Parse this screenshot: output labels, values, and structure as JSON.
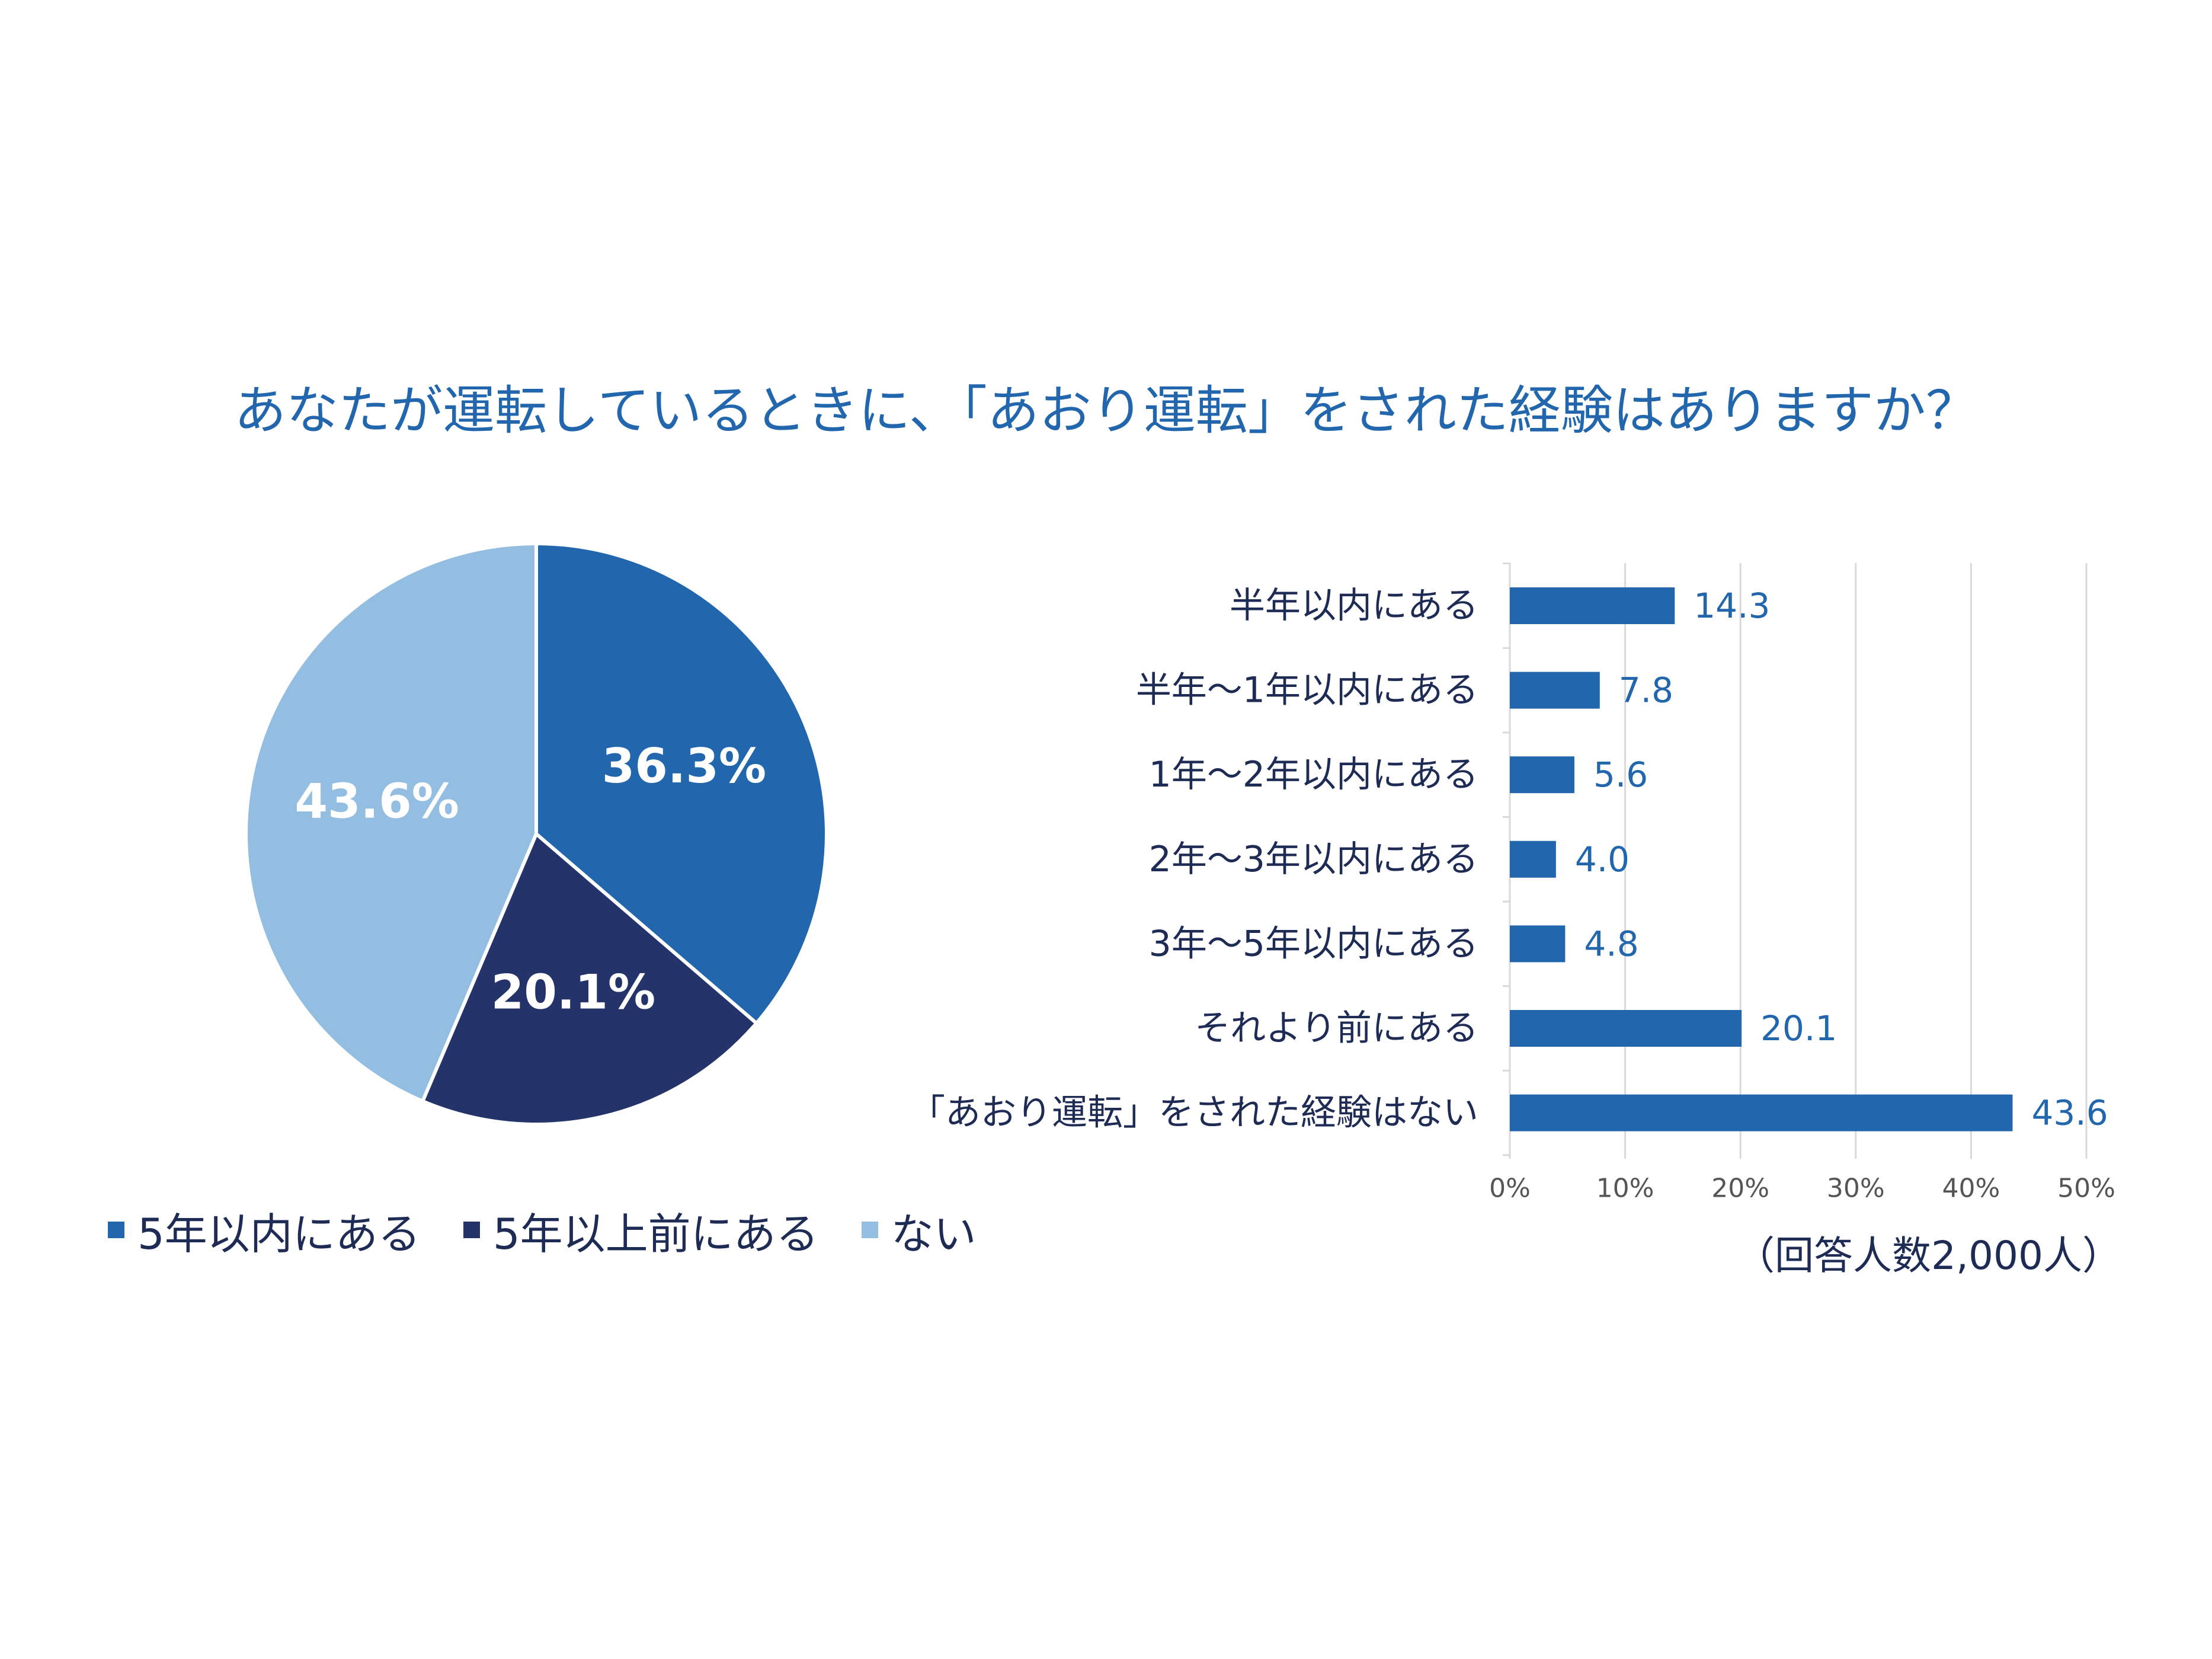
{
  "title": "あなたが運転しているときに、「あおり運転」をされた経験はありますか？",
  "colors": {
    "title": "#2267ad",
    "text": "#1e2b55",
    "axis_text": "#555555",
    "grid": "#d9d9d9",
    "bar": "#2267ad",
    "bar_label": "#2267ad"
  },
  "chart_data": [
    {
      "type": "pie",
      "labels": [
        "5年以内にある",
        "5年以上前にある",
        "ない"
      ],
      "values": [
        36.3,
        20.1,
        43.6
      ],
      "value_labels": [
        "36.3%",
        "20.1%",
        "43.6%"
      ],
      "colors": [
        "#2267ad",
        "#243369",
        "#93bee2"
      ],
      "label_color": "#ffffff",
      "start": "12 o'clock, clockwise",
      "legend": {
        "position": "bottom-left",
        "entries": [
          "5年以内にある",
          "5年以上前にある",
          "ない"
        ]
      }
    },
    {
      "type": "bar",
      "orientation": "horizontal",
      "categories": [
        "半年以内にある",
        "半年～1年以内にある",
        "1年～2年以内にある",
        "2年～3年以内にある",
        "3年～5年以内にある",
        "それより前にある",
        "「あおり運転」をされた経験はない"
      ],
      "values": [
        14.3,
        7.8,
        5.6,
        4.0,
        4.8,
        20.1,
        43.6
      ],
      "value_labels": [
        "14.3",
        "7.8",
        "5.6",
        "4.0",
        "4.8",
        "20.1",
        "43.6"
      ],
      "xlim": [
        0,
        50
      ],
      "xticks": [
        0,
        10,
        20,
        30,
        40,
        50
      ],
      "xtick_labels": [
        "0%",
        "10%",
        "20%",
        "30%",
        "40%",
        "50%"
      ],
      "grid": "vertical",
      "note": "（回答人数2,000人）"
    }
  ]
}
